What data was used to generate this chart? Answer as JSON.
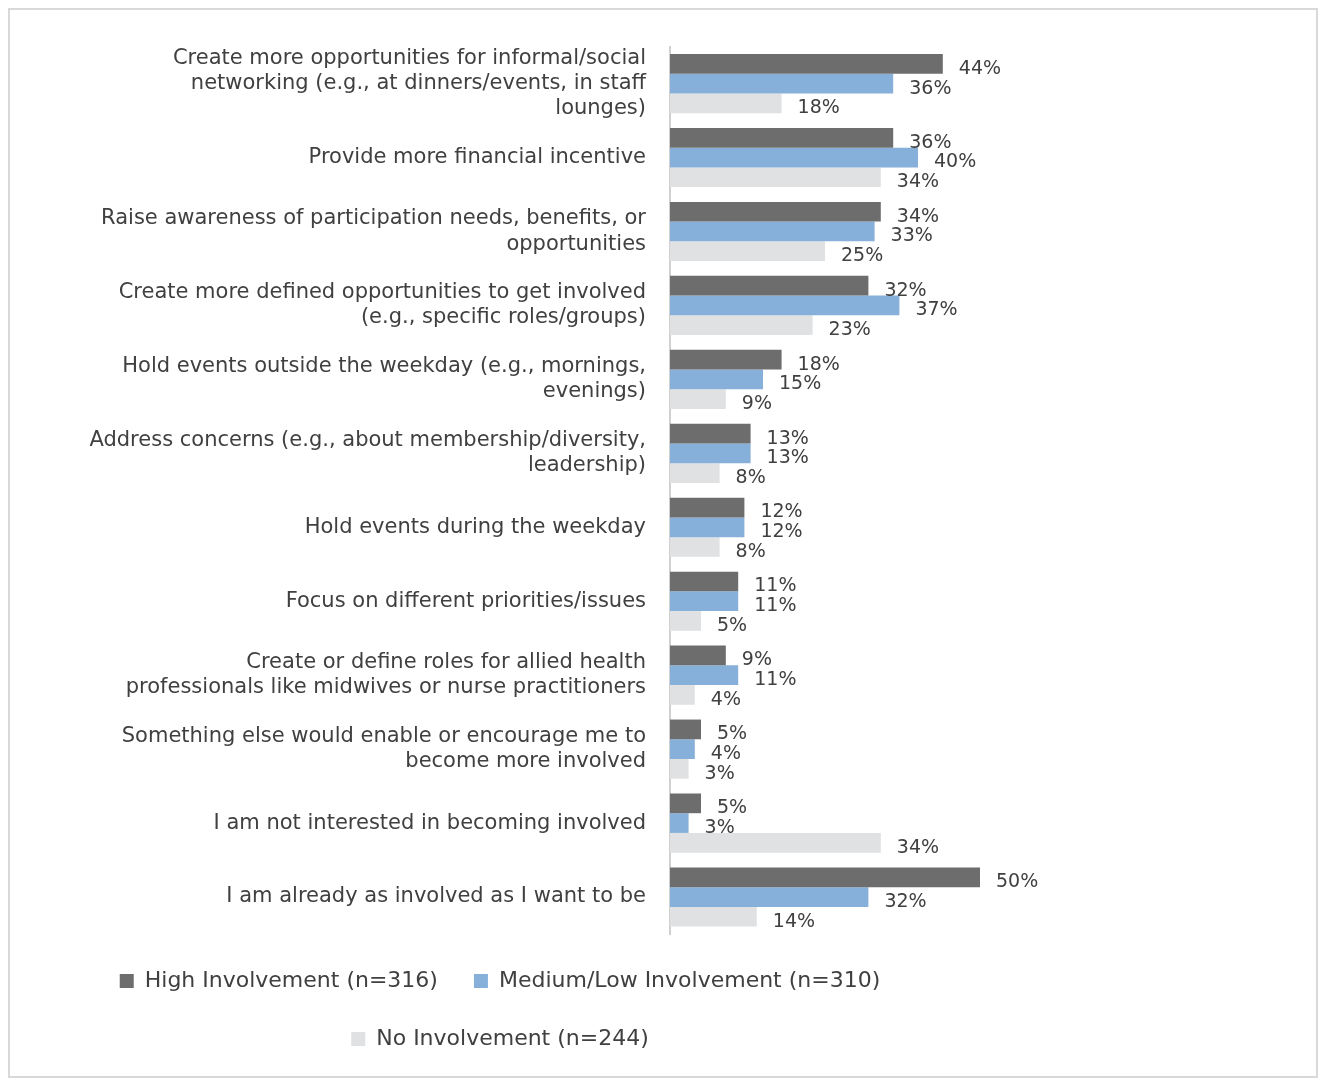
{
  "chart_data": {
    "type": "bar",
    "orientation": "horizontal",
    "categories": [
      "Create more opportunities for informal/social networking (e.g., at dinners/events, in staff lounges)",
      "Provide more financial incentive",
      "Raise awareness of participation needs, benefits, or opportunities",
      "Create more defined opportunities to get involved (e.g., specific roles/groups)",
      "Hold events outside the weekday (e.g., mornings, evenings)",
      "Address concerns (e.g., about membership/diversity, leadership)",
      "Hold events during the weekday",
      "Focus on different priorities/issues",
      "Create or define roles for allied health professionals like midwives or nurse practitioners",
      "Something else would enable or encourage me to become more involved",
      "I am not interested in becoming involved",
      "I am already as involved as I want to be"
    ],
    "series": [
      {
        "name": "High Involvement (n=316)",
        "color": "#6d6d6d",
        "values": [
          44,
          36,
          34,
          32,
          18,
          13,
          12,
          11,
          9,
          5,
          5,
          50
        ],
        "value_labels": [
          "44%",
          "36%",
          "34%",
          "32%",
          "18%",
          "13%",
          "12%",
          "11%",
          "9%",
          "5%",
          "5%",
          "50%"
        ]
      },
      {
        "name": "Medium/Low Involvement (n=310)",
        "color": "#86b0d9",
        "values": [
          36,
          40,
          33,
          37,
          15,
          13,
          12,
          11,
          11,
          4,
          3,
          32
        ],
        "value_labels": [
          "36%",
          "40%",
          "33%",
          "37%",
          "15%",
          "13%",
          "12%",
          "11%",
          "11%",
          "4%",
          "3%",
          "32%"
        ]
      },
      {
        "name": "No Involvement (n=244)",
        "color": "#dfe1e3",
        "values": [
          18,
          34,
          25,
          23,
          9,
          8,
          8,
          5,
          4,
          3,
          34,
          14
        ],
        "value_labels": [
          "18%",
          "34%",
          "25%",
          "23%",
          "9%",
          "8%",
          "8%",
          "5%",
          "4%",
          "3%",
          "34%",
          "14%"
        ]
      }
    ],
    "tick_labels": "y",
    "grid": false,
    "legend": "bottom"
  }
}
